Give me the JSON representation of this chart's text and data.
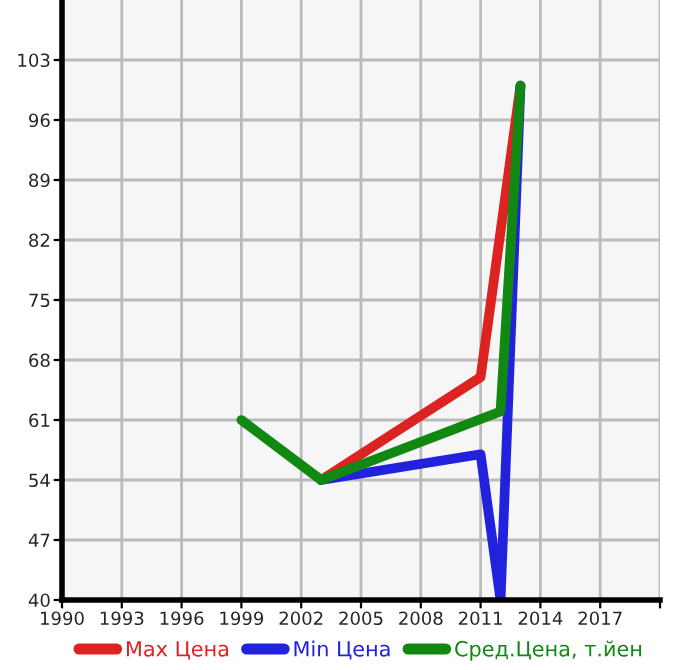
{
  "chart_data": {
    "type": "line",
    "xlim": [
      1990,
      2020
    ],
    "xticks": [
      1990,
      1993,
      1996,
      1999,
      2002,
      2005,
      2008,
      2011,
      2014,
      2017,
      {
        "value": 2020,
        "label": null
      }
    ],
    "ylim": [
      40,
      110
    ],
    "yticks": [
      40,
      47,
      54,
      61,
      68,
      75,
      82,
      89,
      96,
      103
    ],
    "grid": true,
    "legend": "bottom",
    "series": [
      {
        "name": "Max Цена",
        "color": "#dd2222",
        "x": [
          2003,
          2011,
          2013
        ],
        "values": [
          54,
          66,
          100
        ]
      },
      {
        "name": "Min Цена",
        "color": "#2222dd",
        "x": [
          2003,
          2011,
          2012,
          2013
        ],
        "values": [
          54,
          57,
          40,
          100
        ]
      },
      {
        "name": "Сред.Цена, т.йен",
        "color": "#118811",
        "x": [
          1999,
          2003,
          2012,
          2013
        ],
        "values": [
          61,
          54,
          62,
          100
        ]
      }
    ]
  }
}
